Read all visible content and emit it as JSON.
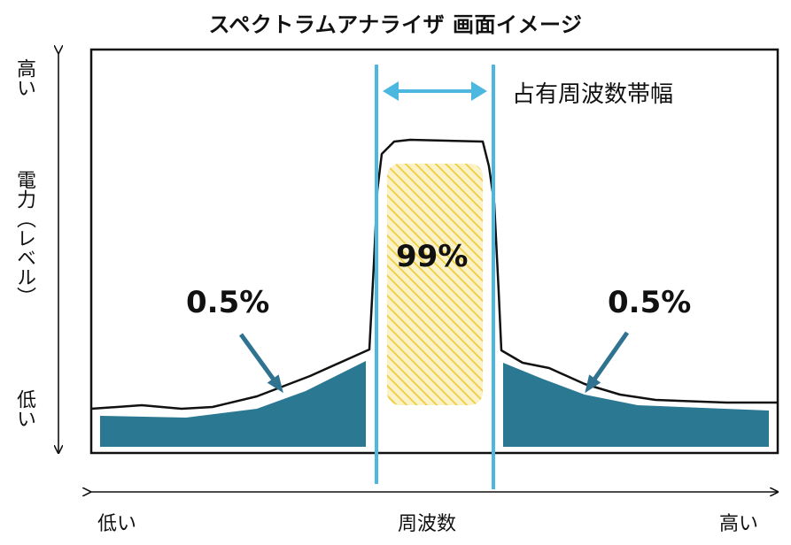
{
  "title": "スペクトラムアナライザ 画面イメージ",
  "y_axis": {
    "name": "電力（レベル）",
    "high": "高い",
    "low": "低い"
  },
  "x_axis": {
    "name": "周波数",
    "low": "低い",
    "high": "高い"
  },
  "occupied_bandwidth_label": "占有周波数帯幅",
  "percentages": {
    "left": "0.5%",
    "center": "99%",
    "right": "0.5%"
  },
  "colors": {
    "band_line": "#4cb8e0",
    "side_fill": "#2b7892",
    "arrow": "#2f7391",
    "center_fill": "#f2d24d"
  }
}
